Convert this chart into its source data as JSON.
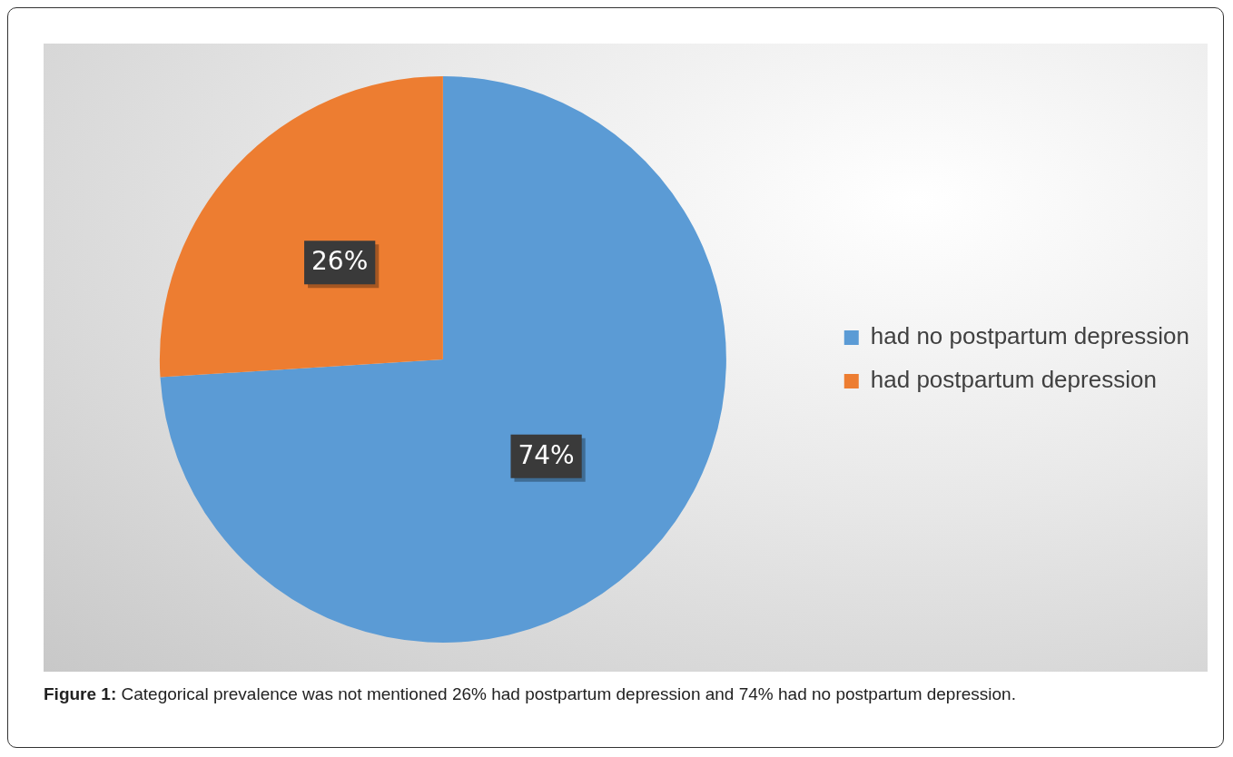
{
  "chart_data": {
    "type": "pie",
    "categories": [
      "had no postpartum depression",
      "had postpartum depression"
    ],
    "values": [
      74,
      26
    ],
    "colors": [
      "#5b9bd5",
      "#ed7d31"
    ],
    "value_labels": [
      "74%",
      "26%"
    ],
    "legend": "right",
    "annotations": [
      "Figure 1: Categorical prevalence was not mentioned 26% had postpartum depression and 74% had no postpartum depression."
    ]
  }
}
